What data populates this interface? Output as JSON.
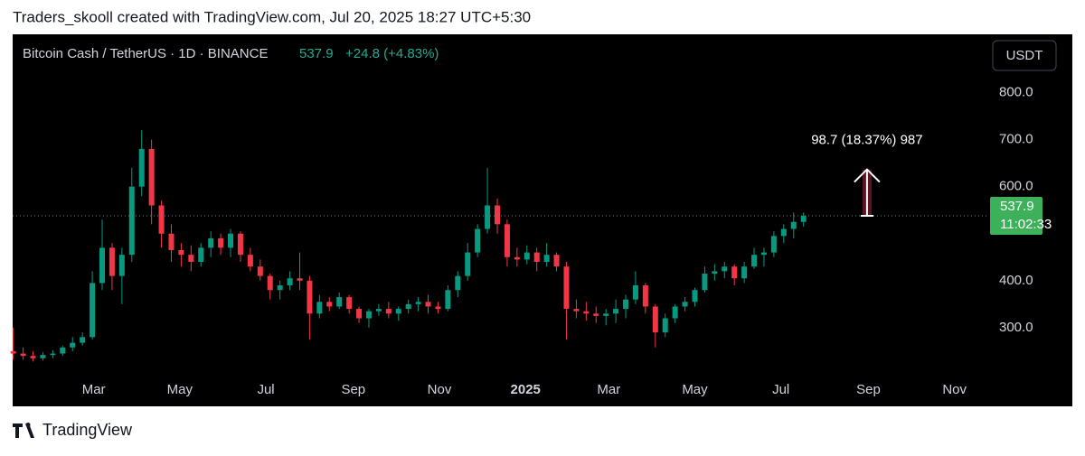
{
  "header": {
    "credit": "Traders_skooll created with TradingView.com, Jul 20, 2025 18:27 UTC+5:30"
  },
  "footer": {
    "brand": "TradingView"
  },
  "chart_data": {
    "type": "candlestick",
    "title": "Bitcoin Cash / TetherUS · 1D · BINANCE",
    "change": "+24.8 (+4.83%)",
    "currency": "USDT",
    "countdown": "11:02:33",
    "up_color": "#089981",
    "down_color": "#f23645",
    "grid": false,
    "x": [
      "2024-01-04",
      "2024-01-11",
      "2024-01-18",
      "2024-01-25",
      "2024-02-01",
      "2024-02-08",
      "2024-02-15",
      "2024-02-22",
      "2024-02-29",
      "2024-03-07",
      "2024-03-14",
      "2024-03-21",
      "2024-03-28",
      "2024-04-04",
      "2024-04-11",
      "2024-04-18",
      "2024-04-25",
      "2024-05-02",
      "2024-05-09",
      "2024-05-16",
      "2024-05-23",
      "2024-05-30",
      "2024-06-06",
      "2024-06-13",
      "2024-06-20",
      "2024-06-27",
      "2024-07-04",
      "2024-07-11",
      "2024-07-18",
      "2024-07-25",
      "2024-08-01",
      "2024-08-08",
      "2024-08-15",
      "2024-08-22",
      "2024-08-29",
      "2024-09-05",
      "2024-09-12",
      "2024-09-19",
      "2024-09-26",
      "2024-10-03",
      "2024-10-10",
      "2024-10-17",
      "2024-10-24",
      "2024-10-31",
      "2024-11-07",
      "2024-11-14",
      "2024-11-21",
      "2024-11-28",
      "2024-12-05",
      "2024-12-12",
      "2024-12-19",
      "2024-12-26",
      "2025-01-02",
      "2025-01-09",
      "2025-01-16",
      "2025-01-23",
      "2025-01-30",
      "2025-02-06",
      "2025-02-13",
      "2025-02-20",
      "2025-02-27",
      "2025-03-06",
      "2025-03-13",
      "2025-03-20",
      "2025-03-27",
      "2025-04-03",
      "2025-04-10",
      "2025-04-17",
      "2025-04-24",
      "2025-05-01",
      "2025-05-08",
      "2025-05-15",
      "2025-05-22",
      "2025-05-29",
      "2025-06-05",
      "2025-06-12",
      "2025-06-19",
      "2025-06-26",
      "2025-07-03",
      "2025-07-10",
      "2025-07-17"
    ],
    "open": [
      250,
      245,
      240,
      235,
      242,
      245,
      258,
      268,
      280,
      395,
      470,
      410,
      455,
      600,
      680,
      560,
      500,
      465,
      455,
      440,
      470,
      490,
      470,
      500,
      455,
      430,
      410,
      380,
      390,
      405,
      400,
      330,
      355,
      345,
      365,
      340,
      320,
      335,
      340,
      330,
      340,
      350,
      355,
      345,
      340,
      380,
      410,
      460,
      510,
      560,
      520,
      450,
      445,
      460,
      440,
      455,
      430,
      340,
      335,
      330,
      325,
      330,
      340,
      360,
      390,
      345,
      290,
      320,
      345,
      355,
      380,
      415,
      420,
      430,
      405,
      430,
      455,
      460,
      495,
      510,
      525
    ],
    "high": [
      300,
      258,
      250,
      248,
      252,
      262,
      280,
      290,
      420,
      530,
      480,
      470,
      640,
      720,
      700,
      570,
      520,
      480,
      475,
      480,
      505,
      500,
      510,
      505,
      470,
      445,
      415,
      400,
      420,
      460,
      410,
      370,
      365,
      375,
      370,
      345,
      340,
      350,
      355,
      345,
      360,
      365,
      370,
      355,
      390,
      420,
      480,
      520,
      640,
      575,
      530,
      470,
      475,
      470,
      480,
      460,
      440,
      360,
      355,
      345,
      340,
      360,
      370,
      420,
      395,
      350,
      330,
      350,
      365,
      385,
      430,
      435,
      440,
      435,
      440,
      470,
      470,
      505,
      520,
      545,
      545
    ],
    "low": [
      232,
      232,
      228,
      230,
      235,
      240,
      250,
      262,
      275,
      380,
      380,
      350,
      440,
      580,
      520,
      470,
      440,
      430,
      420,
      430,
      450,
      455,
      450,
      440,
      420,
      400,
      360,
      360,
      380,
      380,
      275,
      320,
      335,
      340,
      330,
      310,
      300,
      325,
      320,
      315,
      330,
      335,
      330,
      330,
      335,
      365,
      400,
      450,
      500,
      500,
      430,
      430,
      435,
      420,
      430,
      420,
      275,
      320,
      315,
      310,
      305,
      310,
      320,
      350,
      330,
      258,
      280,
      310,
      335,
      345,
      375,
      400,
      405,
      390,
      395,
      425,
      430,
      450,
      480,
      490,
      515
    ],
    "close": [
      245,
      240,
      235,
      242,
      245,
      258,
      268,
      280,
      395,
      470,
      410,
      455,
      600,
      680,
      560,
      500,
      465,
      455,
      440,
      470,
      490,
      470,
      500,
      455,
      430,
      410,
      380,
      390,
      405,
      400,
      330,
      355,
      345,
      365,
      340,
      320,
      335,
      340,
      330,
      340,
      350,
      355,
      345,
      340,
      380,
      410,
      460,
      510,
      560,
      520,
      450,
      445,
      460,
      440,
      455,
      430,
      340,
      335,
      330,
      325,
      330,
      340,
      360,
      390,
      345,
      290,
      320,
      345,
      355,
      380,
      415,
      420,
      430,
      405,
      430,
      455,
      460,
      495,
      510,
      525,
      537.9
    ],
    "ylim": [
      200,
      920
    ],
    "yticks": [
      {
        "value": 300,
        "label": "300.0"
      },
      {
        "value": 400,
        "label": "400.0"
      },
      {
        "value": 600,
        "label": "600.0"
      },
      {
        "value": 700,
        "label": "700.0"
      },
      {
        "value": 800,
        "label": "800.0"
      }
    ],
    "xlim": [
      "2024-01-01",
      "2025-11-23"
    ],
    "xticks": [
      {
        "value": "2024-03-01",
        "label": "Mar"
      },
      {
        "value": "2024-05-01",
        "label": "May"
      },
      {
        "value": "2024-07-01",
        "label": "Jul"
      },
      {
        "value": "2024-09-01",
        "label": "Sep"
      },
      {
        "value": "2024-11-01",
        "label": "Nov"
      },
      {
        "value": "2025-01-01",
        "label": "2025"
      },
      {
        "value": "2025-03-01",
        "label": "Mar"
      },
      {
        "value": "2025-05-01",
        "label": "May"
      },
      {
        "value": "2025-07-01",
        "label": "Jul"
      },
      {
        "value": "2025-09-01",
        "label": "Sep"
      },
      {
        "value": "2025-11-01",
        "label": "Nov"
      }
    ],
    "measure": {
      "label": "98.7 (18.37%) 987",
      "x": "2025-08-31",
      "from": 537.9,
      "to": 636.6
    }
  }
}
